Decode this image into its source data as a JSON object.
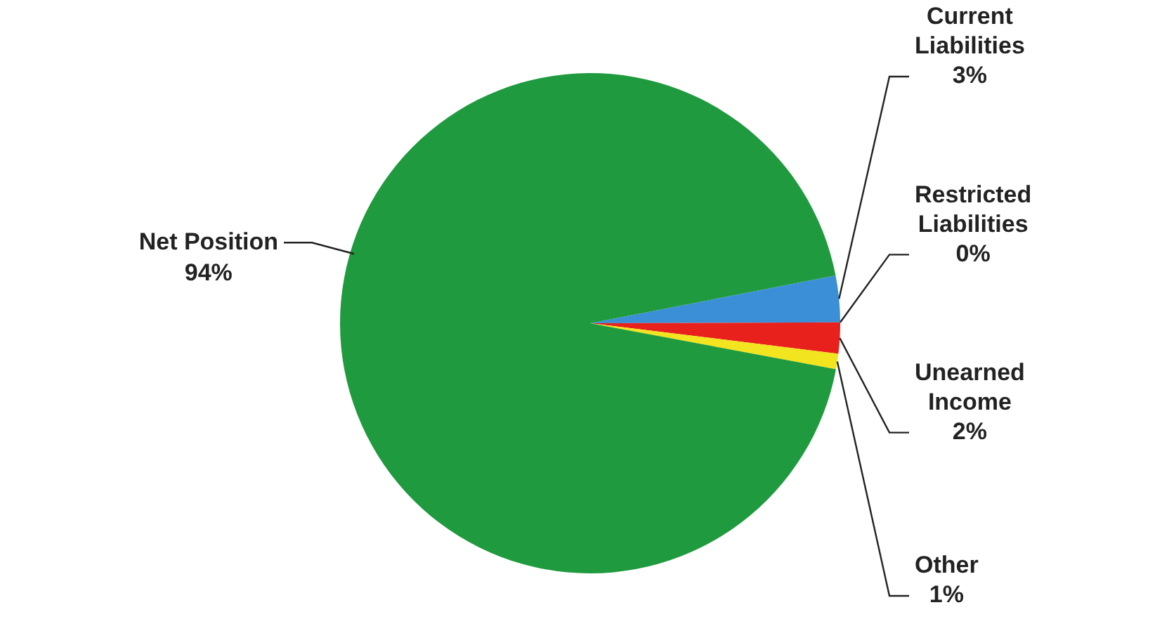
{
  "chart_data": {
    "type": "pie",
    "categories": [
      "Current Liabilities",
      "Restricted Liabilities",
      "Unearned Income",
      "Other",
      "Net Position"
    ],
    "values": [
      3,
      0,
      2,
      1,
      94
    ],
    "colors": [
      "#3b8fd6",
      "#8a8a8a",
      "#e8211d",
      "#f2e41e",
      "#1f9a3e"
    ],
    "value_labels": [
      "3%",
      "0%",
      "2%",
      "1%",
      "94%"
    ],
    "legend": false
  }
}
